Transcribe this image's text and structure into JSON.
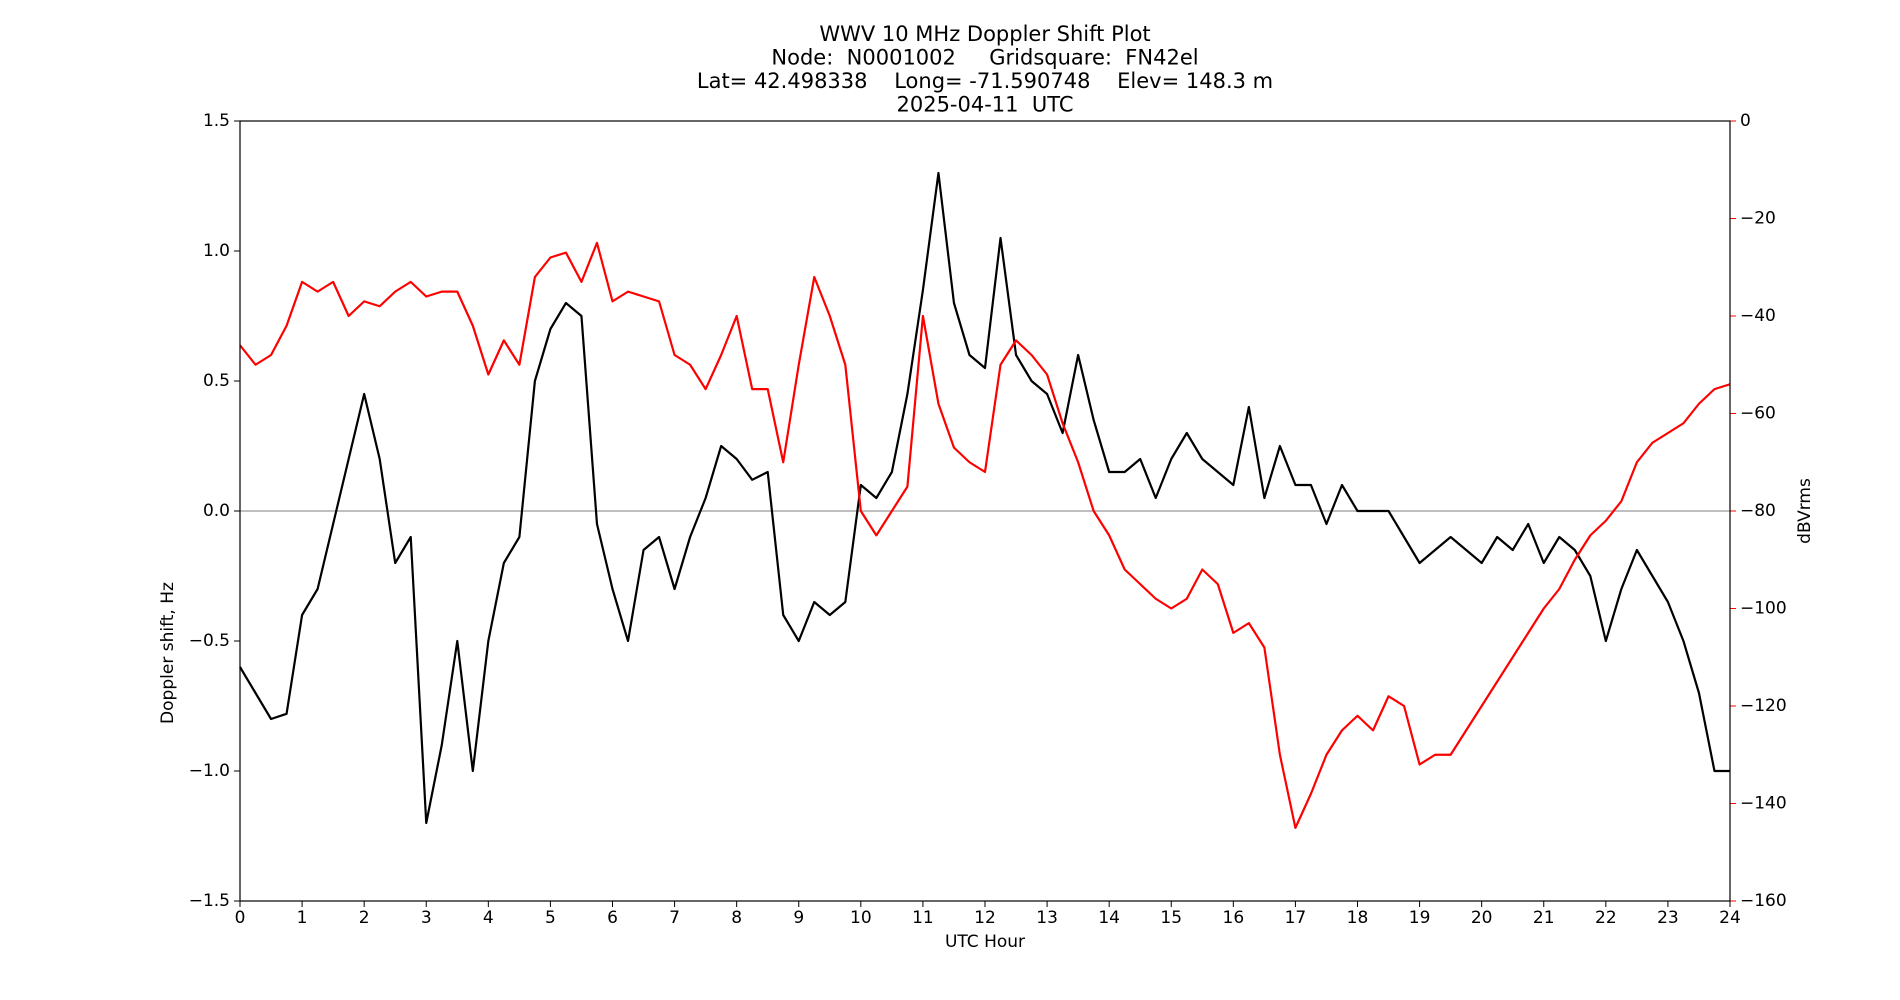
{
  "chart_data": {
    "type": "line",
    "title_lines": [
      "WWV 10 MHz Doppler Shift Plot",
      "Node:  N0001002     Gridsquare:  FN42el",
      "Lat= 42.498338    Long= -71.590748    Elev= 148.3 m",
      "2025-04-11  UTC"
    ],
    "x_label": "UTC Hour",
    "y_label": "Doppler shift, Hz",
    "y2_label": "dBVrms",
    "x": [
      0,
      0.25,
      0.5,
      0.75,
      1,
      1.25,
      1.5,
      1.75,
      2,
      2.25,
      2.5,
      2.75,
      3,
      3.25,
      3.5,
      3.75,
      4,
      4.25,
      4.5,
      4.75,
      5,
      5.25,
      5.5,
      5.75,
      6,
      6.25,
      6.5,
      6.75,
      7,
      7.25,
      7.5,
      7.75,
      8,
      8.25,
      8.5,
      8.75,
      9,
      9.25,
      9.5,
      9.75,
      10,
      10.25,
      10.5,
      10.75,
      11,
      11.25,
      11.5,
      11.75,
      12,
      12.25,
      12.5,
      12.75,
      13,
      13.25,
      13.5,
      13.75,
      14,
      14.25,
      14.5,
      14.75,
      15,
      15.25,
      15.5,
      15.75,
      16,
      16.25,
      16.5,
      16.75,
      17,
      17.25,
      17.5,
      17.75,
      18,
      18.25,
      18.5,
      18.75,
      19,
      19.25,
      19.5,
      19.75,
      20,
      20.25,
      20.5,
      20.75,
      21,
      21.25,
      21.5,
      21.75,
      22,
      22.25,
      22.5,
      22.75,
      23,
      23.25,
      23.5,
      23.75,
      24
    ],
    "series": [
      {
        "color": "#000000",
        "values": [
          -0.6,
          -0.7,
          -0.8,
          -0.78,
          -0.4,
          -0.3,
          -0.05,
          0.2,
          0.45,
          0.2,
          -0.2,
          -0.1,
          -1.2,
          -0.9,
          -0.5,
          -1.0,
          -0.5,
          -0.2,
          -0.1,
          0.5,
          0.7,
          0.8,
          0.75,
          -0.05,
          -0.3,
          -0.5,
          -0.15,
          -0.1,
          -0.3,
          -0.1,
          0.05,
          0.25,
          0.2,
          0.12,
          0.15,
          -0.4,
          -0.5,
          -0.35,
          -0.4,
          -0.35,
          0.1,
          0.05,
          0.15,
          0.45,
          0.85,
          1.3,
          0.8,
          0.6,
          0.55,
          1.05,
          0.6,
          0.5,
          0.45,
          0.3,
          0.6,
          0.35,
          0.15,
          0.15,
          0.2,
          0.05,
          0.2,
          0.3,
          0.2,
          0.15,
          0.1,
          0.4,
          0.05,
          0.25,
          0.1,
          0.1,
          -0.05,
          0.1,
          0.0,
          0.0,
          0.0,
          -0.1,
          -0.2,
          -0.15,
          -0.1,
          -0.15,
          -0.2,
          -0.1,
          -0.15,
          -0.05,
          -0.2,
          -0.1,
          -0.15,
          -0.25,
          -0.5,
          -0.3,
          -0.15,
          -0.25,
          -0.35,
          -0.5,
          -0.7,
          -1.0,
          -1.0
        ]
      },
      {
        "color": "#ff0000",
        "axis": "y2",
        "values": [
          -46,
          -50,
          -48,
          -42,
          -33,
          -35,
          -33,
          -40,
          -37,
          -38,
          -35,
          -33,
          -36,
          -35,
          -35,
          -42,
          -52,
          -45,
          -50,
          -32,
          -28,
          -27,
          -33,
          -25,
          -37,
          -35,
          -36,
          -37,
          -48,
          -50,
          -55,
          -48,
          -40,
          -55,
          -55,
          -70,
          -50,
          -32,
          -40,
          -50,
          -80,
          -85,
          -80,
          -75,
          -40,
          -58,
          -67,
          -70,
          -72,
          -50,
          -45,
          -48,
          -52,
          -62,
          -70,
          -80,
          -85,
          -92,
          -95,
          -98,
          -100,
          -98,
          -92,
          -95,
          -105,
          -103,
          -108,
          -130,
          -145,
          -138,
          -130,
          -125,
          -122,
          -125,
          -118,
          -120,
          -132,
          -130,
          -130,
          -125,
          -120,
          -115,
          -110,
          -105,
          -100,
          -96,
          -90,
          -85,
          -82,
          -78,
          -70,
          -66,
          -64,
          -62,
          -58,
          -55,
          -54
        ]
      }
    ],
    "xlim": [
      0,
      24
    ],
    "xticks": [
      0,
      1,
      2,
      3,
      4,
      5,
      6,
      7,
      8,
      9,
      10,
      11,
      12,
      13,
      14,
      15,
      16,
      17,
      18,
      19,
      20,
      21,
      22,
      23,
      24
    ],
    "ylim": [
      -1.5,
      1.5
    ],
    "yticks": [
      {
        "value": -1.5,
        "label": "−1.5"
      },
      {
        "value": -1.0,
        "label": "−1.0"
      },
      {
        "value": -0.5,
        "label": "−0.5"
      },
      {
        "value": 0,
        "label": "0.0"
      },
      0.5,
      {
        "value": 1.0,
        "label": "1.0"
      },
      1.5
    ],
    "y2lim": [
      -160,
      0
    ],
    "y2ticks": [
      {
        "value": -160,
        "label": "−160"
      },
      {
        "value": -140,
        "label": "−140"
      },
      {
        "value": -120,
        "label": "−120"
      },
      {
        "value": -100,
        "label": "−100"
      },
      {
        "value": -80,
        "label": "−80"
      },
      {
        "value": -60,
        "label": "−60"
      },
      {
        "value": -40,
        "label": "−40"
      },
      {
        "value": -20,
        "label": "−20"
      },
      0
    ],
    "zero_line": true
  }
}
